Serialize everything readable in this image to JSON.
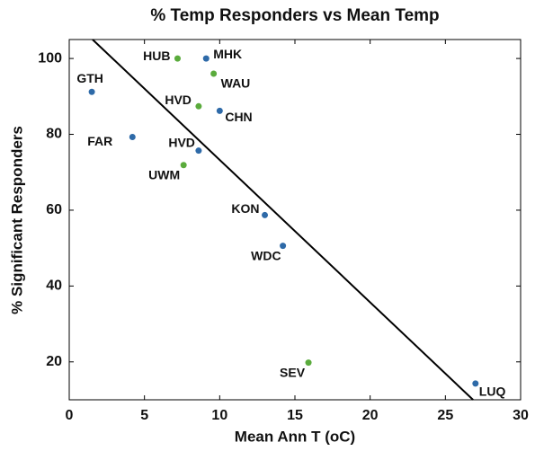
{
  "chart_data": {
    "type": "scatter",
    "title": "% Temp Responders vs Mean Temp",
    "xlabel": "Mean Ann T (oC)",
    "ylabel": "% Significant Responders",
    "xlim": [
      0,
      30
    ],
    "xticks": [
      0,
      5,
      10,
      15,
      20,
      25,
      30
    ],
    "ylim": [
      10,
      105
    ],
    "yticks": [
      20,
      40,
      60,
      80,
      100
    ],
    "labels": [
      "HUB",
      "MHK",
      "WAU",
      "GTH",
      "HVD",
      "CHN",
      "FAR",
      "HVD",
      "UWM",
      "KON",
      "WDC",
      "SEV",
      "LUQ"
    ],
    "x": [
      7.2,
      9.1,
      9.6,
      1.5,
      8.6,
      10.0,
      4.2,
      8.6,
      7.6,
      13.0,
      14.2,
      15.9,
      27.0
    ],
    "y": [
      100.0,
      100.0,
      96.0,
      91.2,
      87.4,
      86.2,
      79.3,
      75.7,
      71.9,
      58.7,
      50.6,
      19.8,
      14.3
    ],
    "colors": [
      "#5aab3c",
      "#2e6aa8",
      "#5aab3c",
      "#2e6aa8",
      "#5aab3c",
      "#2e6aa8",
      "#2e6aa8",
      "#2e6aa8",
      "#5aab3c",
      "#2e6aa8",
      "#2e6aa8",
      "#5aab3c",
      "#2e6aa8"
    ],
    "trendline": {
      "x": [
        1.55,
        26.84
      ],
      "y": [
        105,
        10
      ],
      "color": "#000000"
    }
  }
}
